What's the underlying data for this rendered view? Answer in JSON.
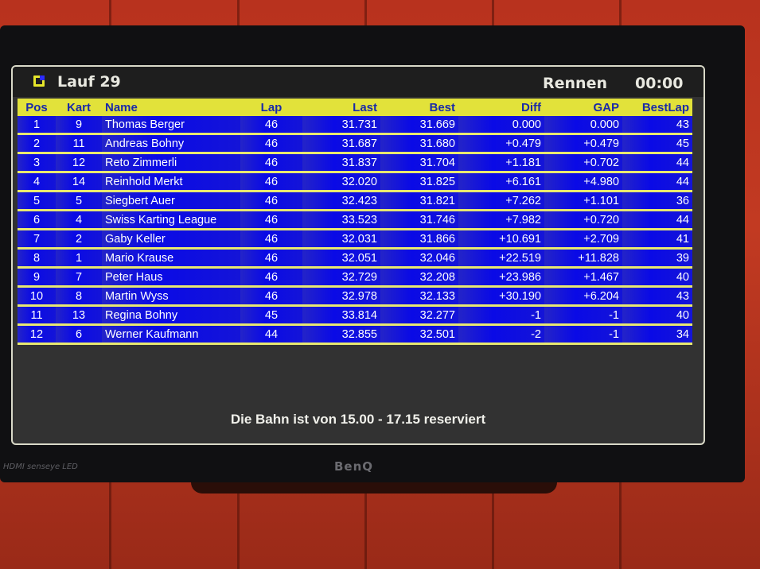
{
  "header": {
    "title": "Lauf 29",
    "mode": "Rennen",
    "clock": "00:00"
  },
  "columns": [
    "Pos",
    "Kart",
    "Name",
    "Lap",
    "Last",
    "Best",
    "Diff",
    "GAP",
    "BestLap"
  ],
  "rows": [
    [
      "1",
      "9",
      "Thomas Berger",
      "46",
      "31.731",
      "31.669",
      "0.000",
      "0.000",
      "43"
    ],
    [
      "2",
      "11",
      "Andreas Bohny",
      "46",
      "31.687",
      "31.680",
      "+0.479",
      "+0.479",
      "45"
    ],
    [
      "3",
      "12",
      "Reto Zimmerli",
      "46",
      "31.837",
      "31.704",
      "+1.181",
      "+0.702",
      "44"
    ],
    [
      "4",
      "14",
      "Reinhold Merkt",
      "46",
      "32.020",
      "31.825",
      "+6.161",
      "+4.980",
      "44"
    ],
    [
      "5",
      "5",
      "Siegbert Auer",
      "46",
      "32.423",
      "31.821",
      "+7.262",
      "+1.101",
      "36"
    ],
    [
      "6",
      "4",
      "Swiss Karting League",
      "46",
      "33.523",
      "31.746",
      "+7.982",
      "+0.720",
      "44"
    ],
    [
      "7",
      "2",
      "Gaby Keller",
      "46",
      "32.031",
      "31.866",
      "+10.691",
      "+2.709",
      "41"
    ],
    [
      "8",
      "1",
      "Mario Krause",
      "46",
      "32.051",
      "32.046",
      "+22.519",
      "+11.828",
      "39"
    ],
    [
      "9",
      "7",
      "Peter Haus",
      "46",
      "32.729",
      "32.208",
      "+23.986",
      "+1.467",
      "40"
    ],
    [
      "10",
      "8",
      "Martin Wyss",
      "46",
      "32.978",
      "32.133",
      "+30.190",
      "+6.204",
      "43"
    ],
    [
      "11",
      "13",
      "Regina Bohny",
      "45",
      "33.814",
      "32.277",
      "-1",
      "-1",
      "40"
    ],
    [
      "12",
      "6",
      "Werner Kaufmann",
      "44",
      "32.855",
      "32.501",
      "-2",
      "-1",
      "34"
    ]
  ],
  "footer": "Die Bahn ist von 15.00 - 17.15 reserviert",
  "monitor": {
    "brand": "BenQ",
    "ports": "HDMI senseye LED"
  },
  "colors": {
    "header_row": "#e2e23a",
    "row": "#0a0ae6",
    "separator": "#e8e870",
    "screen_bg": "#323232"
  }
}
